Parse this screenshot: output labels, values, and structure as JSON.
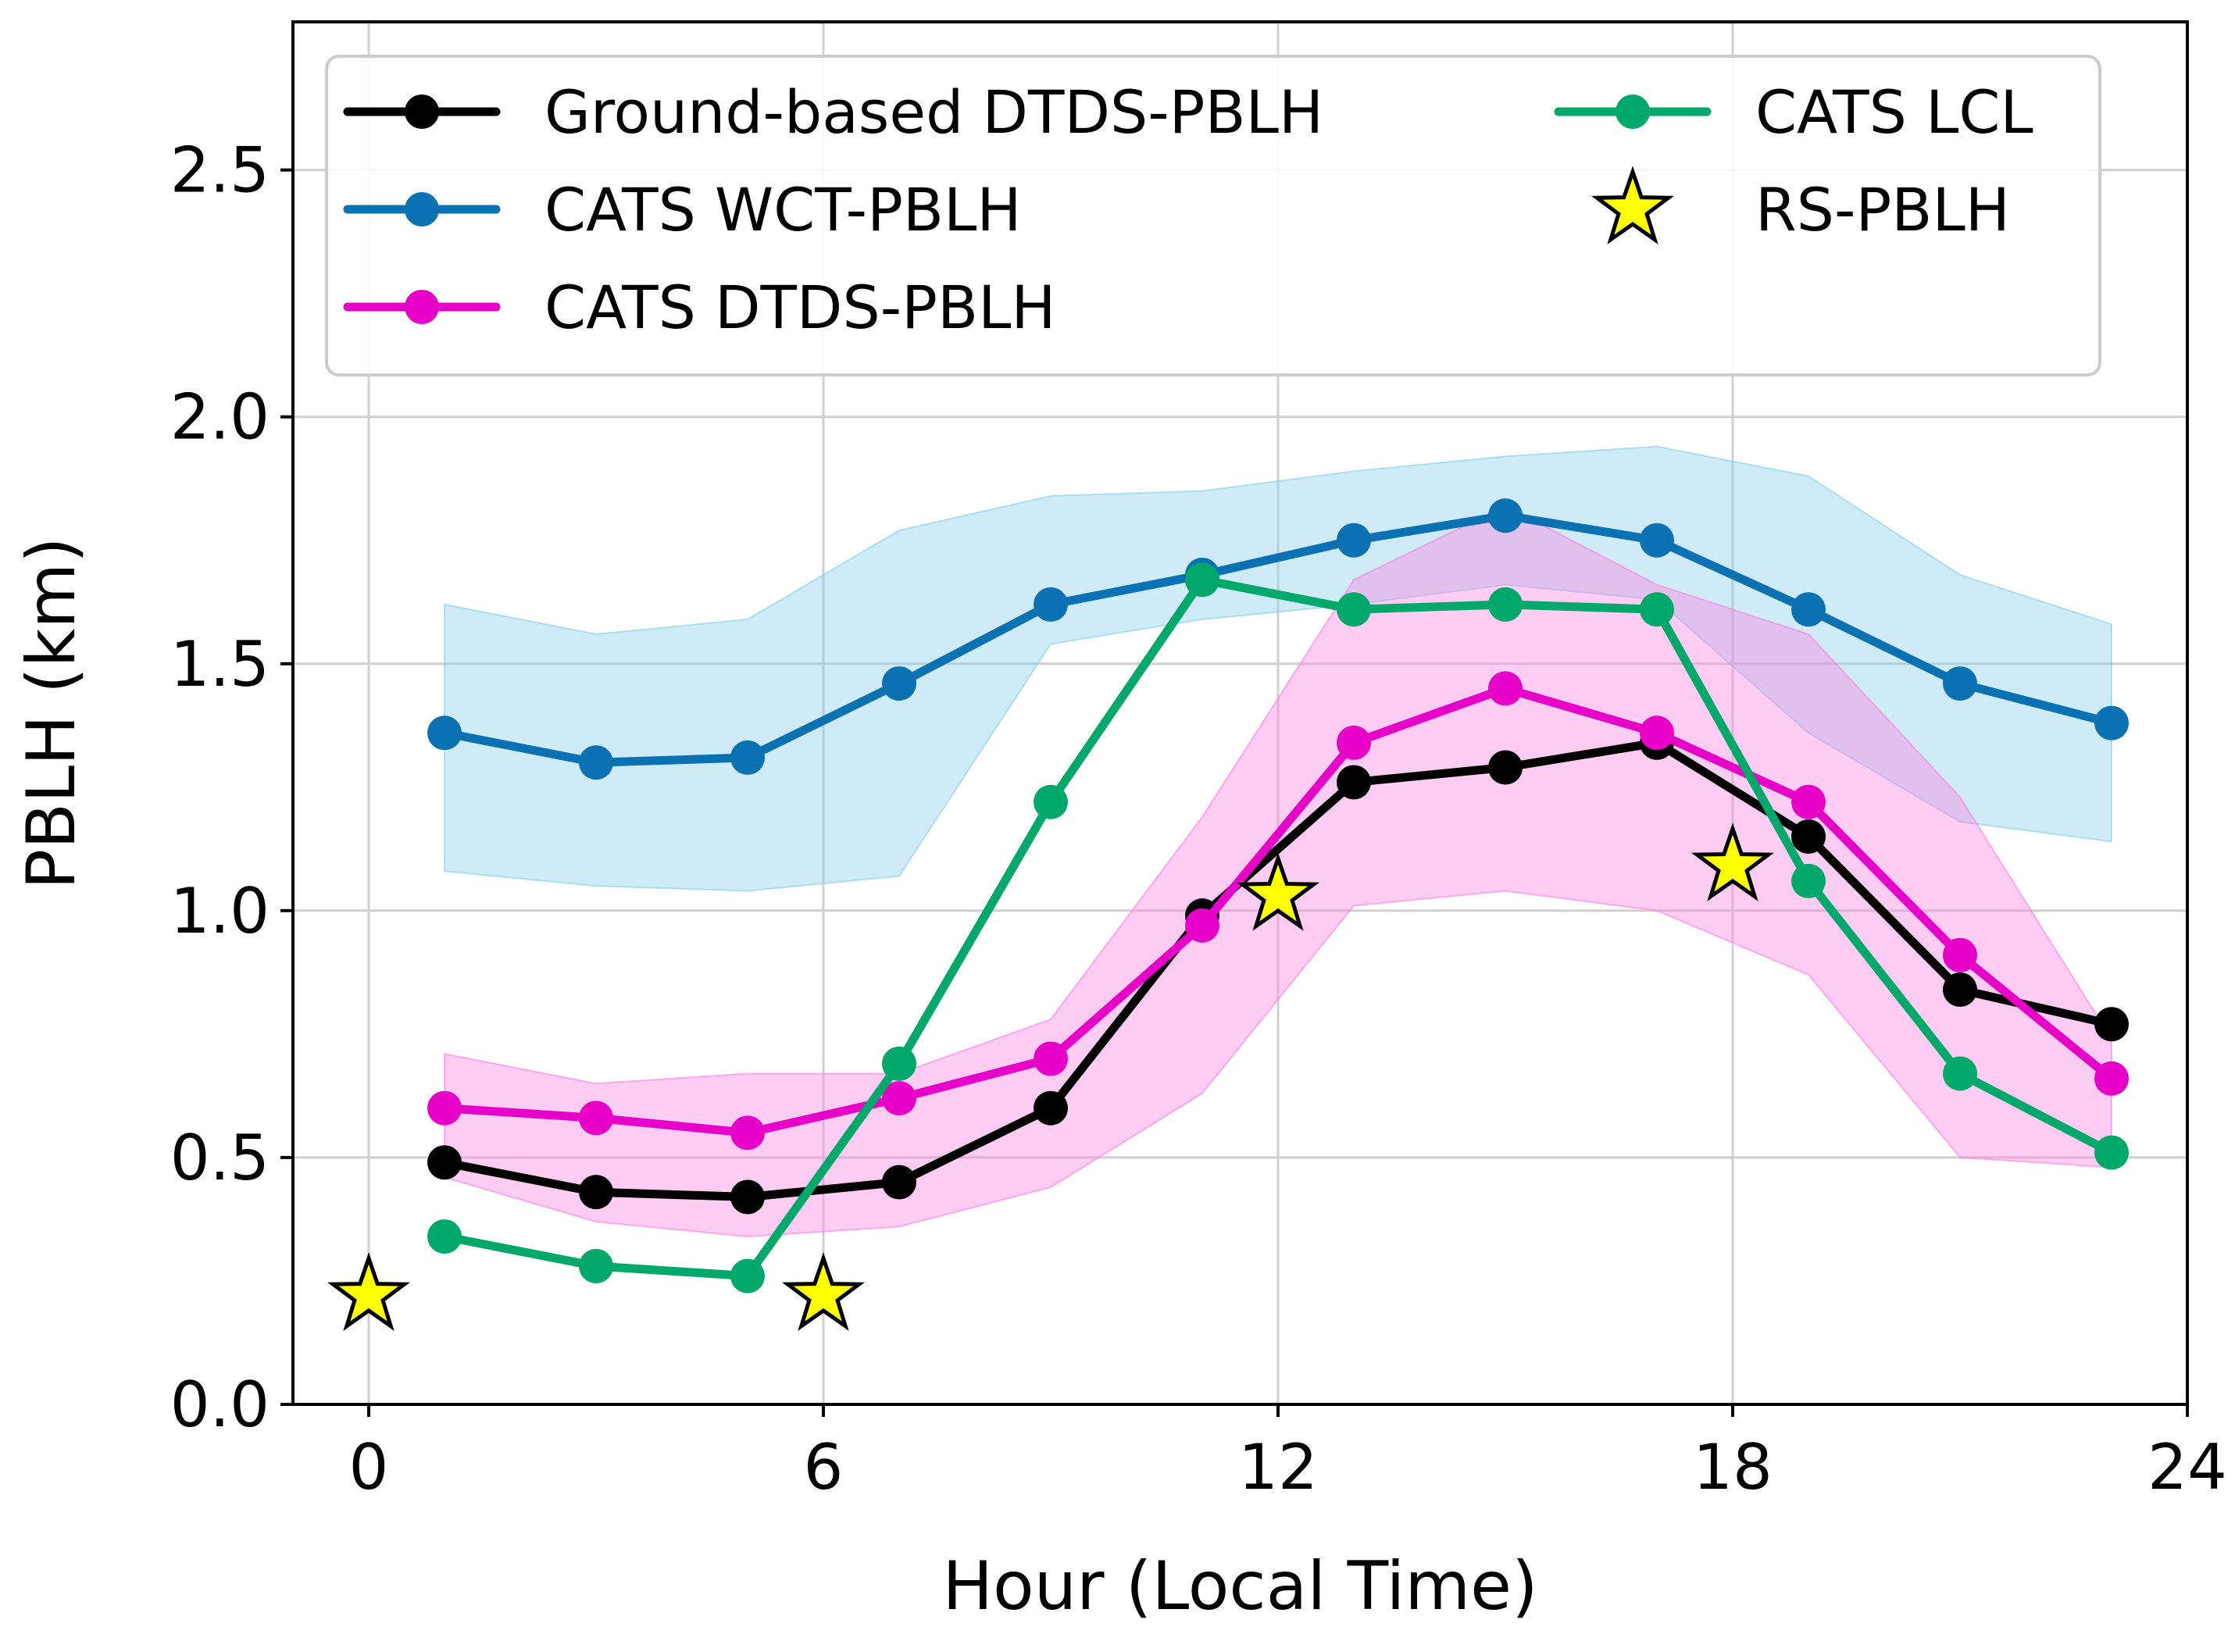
{
  "chart_data": {
    "type": "line",
    "title": "",
    "xlabel": "Hour (Local Time)",
    "ylabel": "PBLH (km)",
    "xlim": [
      -1,
      24
    ],
    "ylim": [
      0,
      2.8
    ],
    "xticks": [
      0,
      6,
      12,
      18,
      24
    ],
    "xtick_labels": [
      "0",
      "6",
      "12",
      "18",
      "24"
    ],
    "yticks": [
      0.0,
      0.5,
      1.0,
      1.5,
      2.0,
      2.5
    ],
    "ytick_labels": [
      "0.0",
      "0.5",
      "1.0",
      "1.5",
      "2.0",
      "2.5"
    ],
    "grid": true,
    "legend_position": "top",
    "x": [
      1,
      3,
      5,
      7,
      9,
      11,
      13,
      15,
      17,
      19,
      21,
      23
    ],
    "series": [
      {
        "key": "ground",
        "name": "Ground-based DTDS-PBLH",
        "color": "#000000",
        "values": [
          0.49,
          0.43,
          0.42,
          0.45,
          0.6,
          0.99,
          1.26,
          1.29,
          1.34,
          1.15,
          0.84,
          0.77
        ]
      },
      {
        "key": "wct",
        "name": "CATS WCT-PBLH",
        "color": "#0a72b2",
        "band_color": "#87ceeb",
        "values": [
          1.36,
          1.3,
          1.31,
          1.46,
          1.62,
          1.68,
          1.75,
          1.8,
          1.75,
          1.61,
          1.46,
          1.38
        ],
        "band_low": [
          1.08,
          1.05,
          1.04,
          1.07,
          1.54,
          1.59,
          1.62,
          1.66,
          1.63,
          1.36,
          1.18,
          1.14
        ],
        "band_high": [
          1.62,
          1.56,
          1.59,
          1.77,
          1.84,
          1.85,
          1.89,
          1.92,
          1.94,
          1.88,
          1.68,
          1.58
        ]
      },
      {
        "key": "dtds",
        "name": "CATS DTDS-PBLH",
        "color": "#e600c8",
        "band_color": "#ff80e0",
        "values": [
          0.6,
          0.58,
          0.55,
          0.62,
          0.7,
          0.97,
          1.34,
          1.45,
          1.36,
          1.22,
          0.91,
          0.66
        ],
        "band_low": [
          0.46,
          0.37,
          0.34,
          0.36,
          0.44,
          0.63,
          1.01,
          1.04,
          1.0,
          0.87,
          0.5,
          0.48
        ],
        "band_high": [
          0.71,
          0.65,
          0.67,
          0.67,
          0.78,
          1.19,
          1.67,
          1.82,
          1.66,
          1.56,
          1.23,
          0.74
        ]
      },
      {
        "key": "lcl",
        "name": "CATS LCL",
        "color": "#00a86b",
        "values": [
          0.34,
          0.28,
          0.26,
          0.69,
          1.22,
          1.67,
          1.61,
          1.62,
          1.61,
          1.06,
          0.67,
          0.51
        ]
      }
    ],
    "stars": {
      "name": "RS-PBLH",
      "color": "#ffff00",
      "edge_color": "#000000",
      "x": [
        0,
        6,
        12,
        18
      ],
      "values": [
        0.22,
        0.22,
        1.03,
        1.09
      ]
    }
  }
}
